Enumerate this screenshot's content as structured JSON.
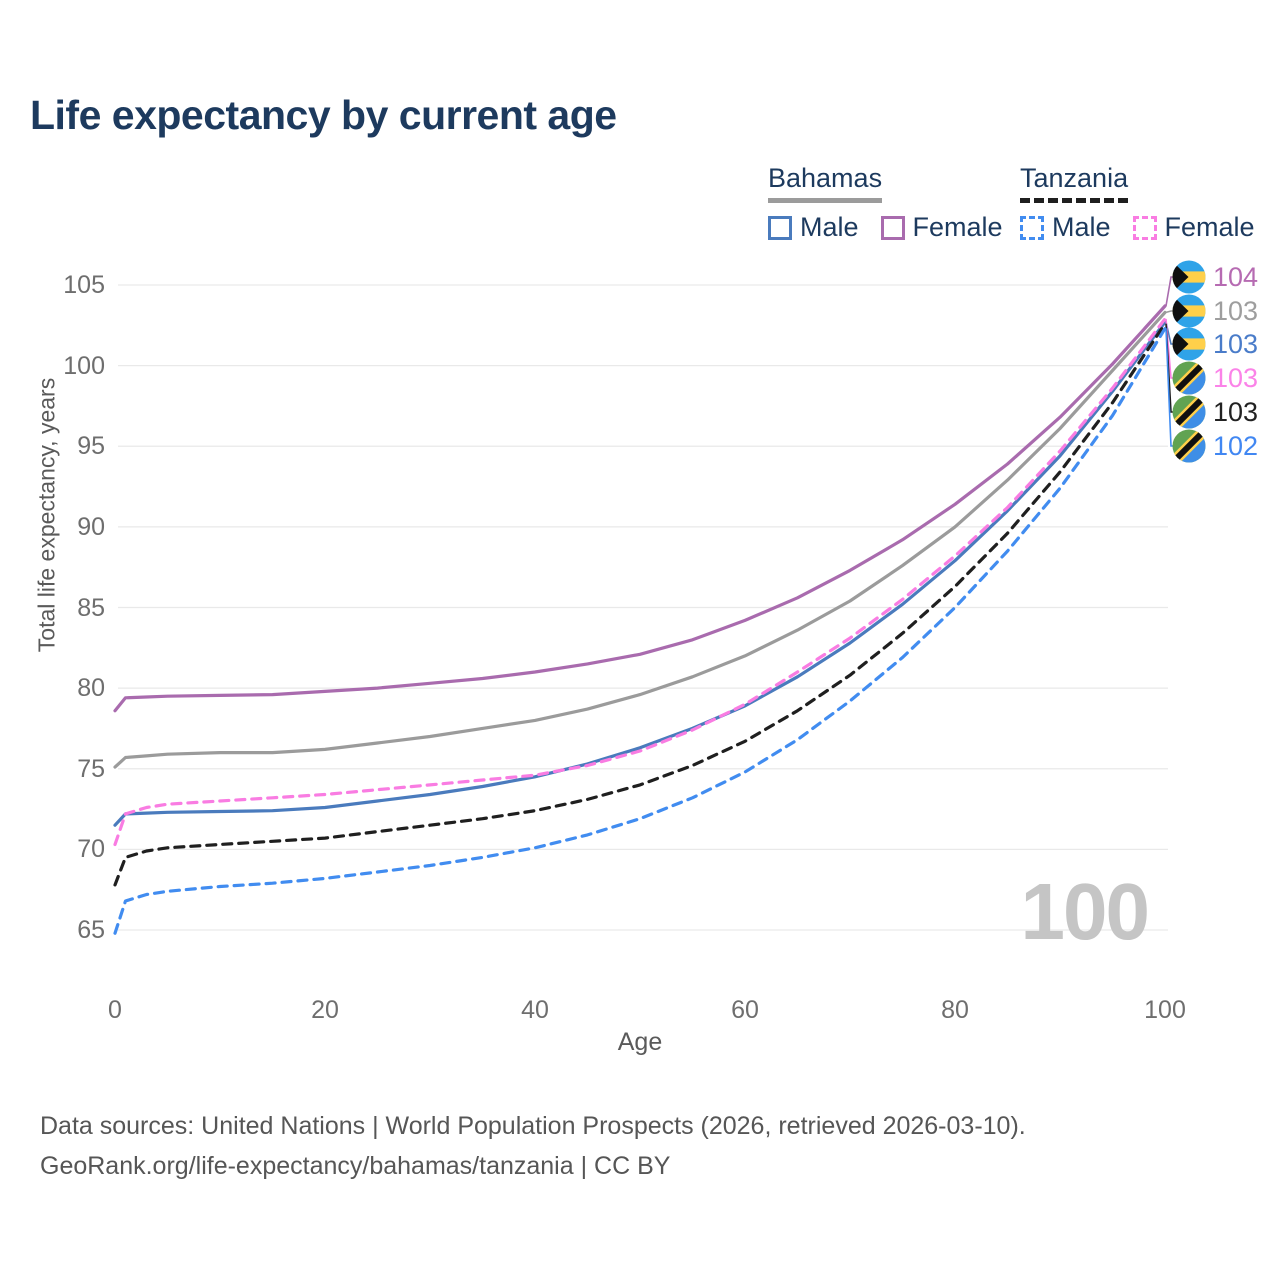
{
  "page": {
    "title": "Life expectancy by current age",
    "hover_age_watermark": "100"
  },
  "legend": {
    "groups": [
      {
        "label": "Bahamas",
        "line_color": "#9b9b9b",
        "line_style": "solid",
        "items": [
          {
            "label": "Male",
            "color": "#4a7bbd",
            "style": "solid"
          },
          {
            "label": "Female",
            "color": "#a96bae",
            "style": "solid"
          }
        ]
      },
      {
        "label": "Tanzania",
        "line_color": "#1f1f1f",
        "line_style": "dashed",
        "items": [
          {
            "label": "Male",
            "color": "#418cf0",
            "style": "dashed"
          },
          {
            "label": "Female",
            "color": "#f97ce2",
            "style": "dashed"
          }
        ]
      }
    ]
  },
  "chart_data": {
    "type": "line",
    "title": "Life expectancy by current age",
    "xlabel": "Age",
    "ylabel": "Total life expectancy, years",
    "xlim": [
      0,
      100
    ],
    "ylim": [
      65,
      105
    ],
    "xticks": [
      0,
      20,
      40,
      60,
      80,
      100
    ],
    "yticks": [
      65,
      70,
      75,
      80,
      85,
      90,
      95,
      100,
      105
    ],
    "grid": "horizontal",
    "legend_position": "top-right",
    "series": [
      {
        "id": "bahamas-female",
        "name": "Bahamas Female",
        "color": "#a96bae",
        "style": "solid",
        "points": [
          [
            0,
            78.6
          ],
          [
            1,
            79.4
          ],
          [
            3,
            79.45
          ],
          [
            5,
            79.5
          ],
          [
            10,
            79.55
          ],
          [
            15,
            79.6
          ],
          [
            20,
            79.8
          ],
          [
            25,
            80.0
          ],
          [
            30,
            80.3
          ],
          [
            35,
            80.6
          ],
          [
            40,
            81.0
          ],
          [
            45,
            81.5
          ],
          [
            50,
            82.1
          ],
          [
            55,
            83.0
          ],
          [
            60,
            84.2
          ],
          [
            65,
            85.6
          ],
          [
            70,
            87.3
          ],
          [
            75,
            89.2
          ],
          [
            80,
            91.4
          ],
          [
            85,
            93.9
          ],
          [
            90,
            96.8
          ],
          [
            95,
            100.1
          ],
          [
            100,
            103.7
          ]
        ]
      },
      {
        "id": "bahamas-total",
        "name": "Bahamas",
        "color": "#9b9b9b",
        "style": "solid",
        "points": [
          [
            0,
            75.1
          ],
          [
            1,
            75.7
          ],
          [
            3,
            75.8
          ],
          [
            5,
            75.9
          ],
          [
            10,
            76.0
          ],
          [
            15,
            76.0
          ],
          [
            20,
            76.2
          ],
          [
            25,
            76.6
          ],
          [
            30,
            77.0
          ],
          [
            35,
            77.5
          ],
          [
            40,
            78.0
          ],
          [
            45,
            78.7
          ],
          [
            50,
            79.6
          ],
          [
            55,
            80.7
          ],
          [
            60,
            82.0
          ],
          [
            65,
            83.6
          ],
          [
            70,
            85.4
          ],
          [
            75,
            87.6
          ],
          [
            80,
            90.0
          ],
          [
            85,
            92.9
          ],
          [
            90,
            96.1
          ],
          [
            95,
            99.7
          ],
          [
            100,
            103.3
          ]
        ]
      },
      {
        "id": "bahamas-male",
        "name": "Bahamas Male",
        "color": "#4a7bbd",
        "style": "solid",
        "points": [
          [
            0,
            71.5
          ],
          [
            1,
            72.2
          ],
          [
            3,
            72.25
          ],
          [
            5,
            72.3
          ],
          [
            10,
            72.35
          ],
          [
            15,
            72.4
          ],
          [
            20,
            72.6
          ],
          [
            25,
            73.0
          ],
          [
            30,
            73.4
          ],
          [
            35,
            73.9
          ],
          [
            40,
            74.5
          ],
          [
            45,
            75.3
          ],
          [
            50,
            76.3
          ],
          [
            55,
            77.5
          ],
          [
            60,
            78.9
          ],
          [
            65,
            80.7
          ],
          [
            70,
            82.8
          ],
          [
            75,
            85.2
          ],
          [
            80,
            87.9
          ],
          [
            85,
            91.0
          ],
          [
            90,
            94.4
          ],
          [
            95,
            98.4
          ],
          [
            100,
            102.7
          ]
        ]
      },
      {
        "id": "tanzania-female",
        "name": "Tanzania Female",
        "color": "#f97ce2",
        "style": "dashed",
        "points": [
          [
            0,
            70.3
          ],
          [
            1,
            72.2
          ],
          [
            3,
            72.6
          ],
          [
            5,
            72.8
          ],
          [
            10,
            73.0
          ],
          [
            15,
            73.2
          ],
          [
            20,
            73.4
          ],
          [
            25,
            73.7
          ],
          [
            30,
            74.0
          ],
          [
            35,
            74.3
          ],
          [
            40,
            74.6
          ],
          [
            45,
            75.2
          ],
          [
            50,
            76.1
          ],
          [
            55,
            77.4
          ],
          [
            60,
            79.0
          ],
          [
            65,
            81.0
          ],
          [
            70,
            83.1
          ],
          [
            75,
            85.5
          ],
          [
            80,
            88.2
          ],
          [
            85,
            91.2
          ],
          [
            90,
            94.7
          ],
          [
            95,
            98.6
          ],
          [
            100,
            102.9
          ]
        ]
      },
      {
        "id": "tanzania-total",
        "name": "Tanzania",
        "color": "#1f1f1f",
        "style": "dashed",
        "points": [
          [
            0,
            67.8
          ],
          [
            1,
            69.5
          ],
          [
            3,
            69.9
          ],
          [
            5,
            70.1
          ],
          [
            10,
            70.3
          ],
          [
            15,
            70.5
          ],
          [
            20,
            70.7
          ],
          [
            25,
            71.1
          ],
          [
            30,
            71.5
          ],
          [
            35,
            71.9
          ],
          [
            40,
            72.4
          ],
          [
            45,
            73.1
          ],
          [
            50,
            74.0
          ],
          [
            55,
            75.2
          ],
          [
            60,
            76.7
          ],
          [
            65,
            78.6
          ],
          [
            70,
            80.8
          ],
          [
            75,
            83.4
          ],
          [
            80,
            86.3
          ],
          [
            85,
            89.6
          ],
          [
            90,
            93.4
          ],
          [
            95,
            97.7
          ],
          [
            100,
            102.6
          ]
        ]
      },
      {
        "id": "tanzania-male",
        "name": "Tanzania Male",
        "color": "#418cf0",
        "style": "dashed",
        "points": [
          [
            0,
            64.8
          ],
          [
            1,
            66.8
          ],
          [
            3,
            67.2
          ],
          [
            5,
            67.4
          ],
          [
            10,
            67.7
          ],
          [
            15,
            67.9
          ],
          [
            20,
            68.2
          ],
          [
            25,
            68.6
          ],
          [
            30,
            69.0
          ],
          [
            35,
            69.5
          ],
          [
            40,
            70.1
          ],
          [
            45,
            70.9
          ],
          [
            50,
            71.9
          ],
          [
            55,
            73.2
          ],
          [
            60,
            74.8
          ],
          [
            65,
            76.8
          ],
          [
            70,
            79.2
          ],
          [
            75,
            81.9
          ],
          [
            80,
            85.0
          ],
          [
            85,
            88.5
          ],
          [
            90,
            92.4
          ],
          [
            95,
            96.9
          ],
          [
            100,
            102.3
          ]
        ]
      }
    ]
  },
  "end_labels": [
    {
      "flag": "bahamas",
      "value": "104",
      "color": "#b66bb2"
    },
    {
      "flag": "bahamas",
      "value": "103",
      "color": "#9e9e9e"
    },
    {
      "flag": "bahamas",
      "value": "103",
      "color": "#4a7cc9"
    },
    {
      "flag": "tanzania",
      "value": "103",
      "color": "#fb83e8"
    },
    {
      "flag": "tanzania",
      "value": "103",
      "color": "#222222"
    },
    {
      "flag": "tanzania",
      "value": "102",
      "color": "#4187f2"
    }
  ],
  "footer": {
    "line1": "Data sources: United Nations | World Population Prospects (2026, retrieved 2026-03-10).",
    "line2": "GeoRank.org/life-expectancy/bahamas/tanzania | CC BY"
  }
}
